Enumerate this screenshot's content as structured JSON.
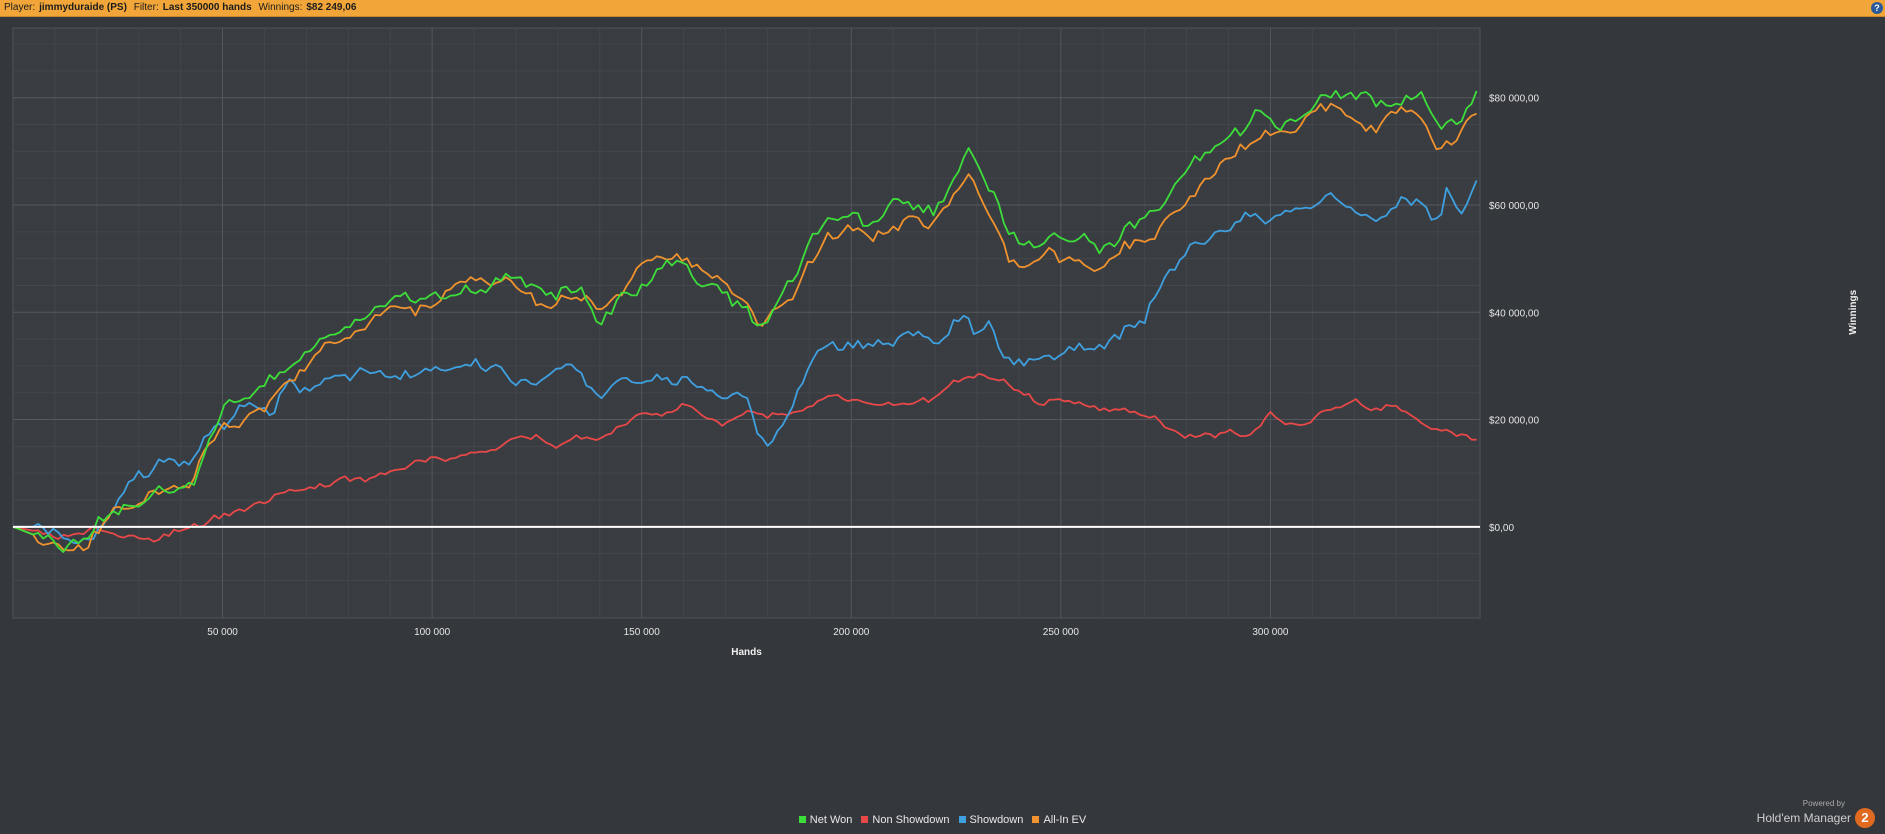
{
  "topbar": {
    "player_label": "Player:",
    "player_value": "jimmyduraide (PS)",
    "filter_label": "Filter:",
    "filter_value": "Last 350000 hands",
    "winnings_label": "Winnings:",
    "winnings_value": "$82 249,06",
    "help": "?"
  },
  "brand": {
    "powered_by": "Powered by",
    "name": "Hold'em Manager",
    "logo": "2"
  },
  "colors": {
    "net_won": "#3dde3a",
    "non_showdown": "#e84848",
    "showdown": "#3fa0e0",
    "all_in_ev": "#f0922d",
    "zero_line": "#ffffff"
  },
  "chart_data": {
    "type": "line",
    "xlabel": "Hands",
    "ylabel": "Winnings",
    "xlim": [
      0,
      350000
    ],
    "ylim": [
      -17000,
      93000
    ],
    "x_ticks": [
      50000,
      100000,
      150000,
      200000,
      250000,
      300000
    ],
    "x_tick_labels": [
      "50 000",
      "100 000",
      "150 000",
      "200 000",
      "250 000",
      "300 000"
    ],
    "y_ticks": [
      0,
      20000,
      40000,
      60000,
      80000
    ],
    "y_tick_labels": [
      "$0,00",
      "$20 000,00",
      "$40 000,00",
      "$60 000,00",
      "$80 000,00"
    ],
    "grid": true,
    "legend_position": "bottom-center",
    "series": [
      {
        "name": "Net Won",
        "points": [
          [
            0,
            0
          ],
          [
            5000,
            -1500
          ],
          [
            10000,
            -3500
          ],
          [
            15000,
            -4500
          ],
          [
            18000,
            -3500
          ],
          [
            20000,
            500
          ],
          [
            25000,
            3500
          ],
          [
            30000,
            6000
          ],
          [
            35000,
            8000
          ],
          [
            40000,
            10000
          ],
          [
            43000,
            11000
          ],
          [
            45000,
            15000
          ],
          [
            50000,
            21000
          ],
          [
            55000,
            23500
          ],
          [
            60000,
            26000
          ],
          [
            65000,
            30000
          ],
          [
            70000,
            32000
          ],
          [
            75000,
            34500
          ],
          [
            80000,
            37500
          ],
          [
            85000,
            40000
          ],
          [
            90000,
            41500
          ],
          [
            95000,
            42500
          ],
          [
            100000,
            42000
          ],
          [
            105000,
            44000
          ],
          [
            110000,
            45500
          ],
          [
            115000,
            45000
          ],
          [
            120000,
            46000
          ],
          [
            125000,
            44000
          ],
          [
            130000,
            43500
          ],
          [
            135000,
            46000
          ],
          [
            140000,
            39000
          ],
          [
            145000,
            44000
          ],
          [
            150000,
            46500
          ],
          [
            155000,
            47500
          ],
          [
            160000,
            46500
          ],
          [
            165000,
            44500
          ],
          [
            170000,
            43500
          ],
          [
            175000,
            41000
          ],
          [
            178000,
            36000
          ],
          [
            182000,
            39000
          ],
          [
            186000,
            44500
          ],
          [
            190000,
            51000
          ],
          [
            195000,
            55000
          ],
          [
            200000,
            56000
          ],
          [
            205000,
            55000
          ],
          [
            210000,
            58000
          ],
          [
            215000,
            59000
          ],
          [
            220000,
            57500
          ],
          [
            225000,
            64000
          ],
          [
            228000,
            68000
          ],
          [
            232000,
            63000
          ],
          [
            235000,
            60000
          ],
          [
            237000,
            56000
          ],
          [
            240000,
            54000
          ],
          [
            245000,
            55000
          ],
          [
            250000,
            55500
          ],
          [
            255000,
            55000
          ],
          [
            260000,
            53000
          ],
          [
            265000,
            57000
          ],
          [
            270000,
            57000
          ],
          [
            275000,
            60000
          ],
          [
            280000,
            67000
          ],
          [
            285000,
            69500
          ],
          [
            290000,
            72000
          ],
          [
            295000,
            75000
          ],
          [
            300000,
            77000
          ],
          [
            305000,
            76000
          ],
          [
            310000,
            79000
          ],
          [
            315000,
            82000
          ],
          [
            320000,
            81000
          ],
          [
            325000,
            79000
          ],
          [
            330000,
            80000
          ],
          [
            335000,
            81000
          ],
          [
            340000,
            76000
          ],
          [
            345000,
            76000
          ],
          [
            350000,
            82249
          ]
        ]
      },
      {
        "name": "Non Showdown",
        "points": [
          [
            0,
            0
          ],
          [
            10000,
            -1500
          ],
          [
            20000,
            -1000
          ],
          [
            25000,
            -2500
          ],
          [
            30000,
            -3500
          ],
          [
            35000,
            -2500
          ],
          [
            40000,
            -500
          ],
          [
            45000,
            500
          ],
          [
            50000,
            2000
          ],
          [
            55000,
            3500
          ],
          [
            60000,
            5000
          ],
          [
            70000,
            6500
          ],
          [
            80000,
            8000
          ],
          [
            90000,
            10000
          ],
          [
            100000,
            12500
          ],
          [
            110000,
            13500
          ],
          [
            115000,
            15000
          ],
          [
            120000,
            16500
          ],
          [
            125000,
            17000
          ],
          [
            130000,
            16000
          ],
          [
            135000,
            17000
          ],
          [
            140000,
            16000
          ],
          [
            145000,
            18000
          ],
          [
            150000,
            20000
          ],
          [
            155000,
            21000
          ],
          [
            160000,
            22500
          ],
          [
            165000,
            21000
          ],
          [
            170000,
            20500
          ],
          [
            175000,
            21500
          ],
          [
            180000,
            21000
          ],
          [
            185000,
            21500
          ],
          [
            190000,
            23000
          ],
          [
            195000,
            24500
          ],
          [
            200000,
            24000
          ],
          [
            210000,
            23500
          ],
          [
            220000,
            24500
          ],
          [
            225000,
            26000
          ],
          [
            230000,
            28000
          ],
          [
            235000,
            28500
          ],
          [
            240000,
            26000
          ],
          [
            245000,
            23000
          ],
          [
            250000,
            23500
          ],
          [
            255000,
            23000
          ],
          [
            260000,
            22000
          ],
          [
            270000,
            21000
          ],
          [
            275000,
            19500
          ],
          [
            280000,
            17000
          ],
          [
            285000,
            17500
          ],
          [
            290000,
            18500
          ],
          [
            295000,
            17000
          ],
          [
            300000,
            20000
          ],
          [
            305000,
            18500
          ],
          [
            310000,
            20000
          ],
          [
            315000,
            22500
          ],
          [
            320000,
            23000
          ],
          [
            325000,
            22500
          ],
          [
            330000,
            23500
          ],
          [
            335000,
            21000
          ],
          [
            340000,
            18500
          ],
          [
            345000,
            17500
          ],
          [
            350000,
            16000
          ]
        ]
      },
      {
        "name": "Showdown",
        "points": [
          [
            0,
            0
          ],
          [
            5000,
            0
          ],
          [
            10000,
            -1500
          ],
          [
            15000,
            -2500
          ],
          [
            20000,
            1000
          ],
          [
            25000,
            5000
          ],
          [
            30000,
            8000
          ],
          [
            35000,
            10500
          ],
          [
            40000,
            11000
          ],
          [
            43000,
            10500
          ],
          [
            45000,
            14000
          ],
          [
            50000,
            18000
          ],
          [
            55000,
            21000
          ],
          [
            60000,
            21500
          ],
          [
            62000,
            21000
          ],
          [
            65000,
            25000
          ],
          [
            70000,
            26000
          ],
          [
            75000,
            27500
          ],
          [
            80000,
            29000
          ],
          [
            85000,
            30500
          ],
          [
            90000,
            29500
          ],
          [
            95000,
            29000
          ],
          [
            100000,
            30000
          ],
          [
            105000,
            31500
          ],
          [
            110000,
            33000
          ],
          [
            112000,
            30500
          ],
          [
            115000,
            31000
          ],
          [
            120000,
            27500
          ],
          [
            125000,
            27000
          ],
          [
            130000,
            29500
          ],
          [
            135000,
            28500
          ],
          [
            140000,
            25000
          ],
          [
            145000,
            27000
          ],
          [
            150000,
            28000
          ],
          [
            155000,
            26000
          ],
          [
            160000,
            25500
          ],
          [
            165000,
            24500
          ],
          [
            170000,
            23000
          ],
          [
            175000,
            24500
          ],
          [
            177000,
            18000
          ],
          [
            180000,
            15000
          ],
          [
            183000,
            19000
          ],
          [
            187000,
            24000
          ],
          [
            190000,
            29000
          ],
          [
            195000,
            32000
          ],
          [
            200000,
            32500
          ],
          [
            205000,
            32000
          ],
          [
            210000,
            34000
          ],
          [
            215000,
            35500
          ],
          [
            220000,
            35000
          ],
          [
            225000,
            39000
          ],
          [
            228000,
            40500
          ],
          [
            230000,
            36000
          ],
          [
            233000,
            37500
          ],
          [
            235000,
            31000
          ],
          [
            240000,
            30500
          ],
          [
            245000,
            31000
          ],
          [
            250000,
            32000
          ],
          [
            255000,
            33000
          ],
          [
            260000,
            33000
          ],
          [
            265000,
            35500
          ],
          [
            270000,
            38000
          ],
          [
            275000,
            46500
          ],
          [
            280000,
            50500
          ],
          [
            285000,
            53500
          ],
          [
            290000,
            56000
          ],
          [
            295000,
            57500
          ],
          [
            300000,
            57000
          ],
          [
            305000,
            58000
          ],
          [
            310000,
            58500
          ],
          [
            315000,
            60000
          ],
          [
            320000,
            57500
          ],
          [
            325000,
            56500
          ],
          [
            330000,
            59000
          ],
          [
            335000,
            60000
          ],
          [
            340000,
            57500
          ],
          [
            342000,
            63500
          ],
          [
            345000,
            57000
          ],
          [
            350000,
            66000
          ]
        ]
      },
      {
        "name": "All-In EV",
        "points": [
          [
            0,
            0
          ],
          [
            5000,
            -1500
          ],
          [
            10000,
            -3000
          ],
          [
            15000,
            -4000
          ],
          [
            18000,
            -2500
          ],
          [
            20000,
            200
          ],
          [
            25000,
            3000
          ],
          [
            30000,
            5000
          ],
          [
            35000,
            7000
          ],
          [
            40000,
            9000
          ],
          [
            43000,
            9500
          ],
          [
            45000,
            13000
          ],
          [
            50000,
            19000
          ],
          [
            55000,
            21500
          ],
          [
            60000,
            23000
          ],
          [
            65000,
            27000
          ],
          [
            70000,
            29500
          ],
          [
            75000,
            32500
          ],
          [
            80000,
            35000
          ],
          [
            85000,
            38000
          ],
          [
            90000,
            40000
          ],
          [
            95000,
            41000
          ],
          [
            100000,
            41500
          ],
          [
            105000,
            43000
          ],
          [
            110000,
            44500
          ],
          [
            115000,
            44000
          ],
          [
            120000,
            45000
          ],
          [
            125000,
            42000
          ],
          [
            130000,
            42500
          ],
          [
            135000,
            44500
          ],
          [
            140000,
            41000
          ],
          [
            145000,
            44500
          ],
          [
            150000,
            48500
          ],
          [
            155000,
            48500
          ],
          [
            160000,
            49500
          ],
          [
            165000,
            47500
          ],
          [
            170000,
            47000
          ],
          [
            175000,
            44000
          ],
          [
            178000,
            40000
          ],
          [
            182000,
            42000
          ],
          [
            186000,
            44000
          ],
          [
            190000,
            50000
          ],
          [
            195000,
            54000
          ],
          [
            200000,
            55000
          ],
          [
            205000,
            53500
          ],
          [
            210000,
            57000
          ],
          [
            215000,
            57500
          ],
          [
            220000,
            56500
          ],
          [
            225000,
            62500
          ],
          [
            228000,
            64500
          ],
          [
            232000,
            60000
          ],
          [
            235000,
            58000
          ],
          [
            237000,
            52000
          ],
          [
            240000,
            50000
          ],
          [
            245000,
            50500
          ],
          [
            250000,
            50000
          ],
          [
            255000,
            50500
          ],
          [
            260000,
            49000
          ],
          [
            265000,
            53000
          ],
          [
            270000,
            53000
          ],
          [
            275000,
            57000
          ],
          [
            280000,
            62000
          ],
          [
            285000,
            65500
          ],
          [
            290000,
            68000
          ],
          [
            295000,
            71000
          ],
          [
            300000,
            72000
          ],
          [
            305000,
            73500
          ],
          [
            310000,
            77000
          ],
          [
            315000,
            79000
          ],
          [
            320000,
            77000
          ],
          [
            325000,
            76000
          ],
          [
            330000,
            78000
          ],
          [
            335000,
            78000
          ],
          [
            340000,
            71000
          ],
          [
            345000,
            74500
          ],
          [
            350000,
            77500
          ]
        ]
      }
    ]
  }
}
